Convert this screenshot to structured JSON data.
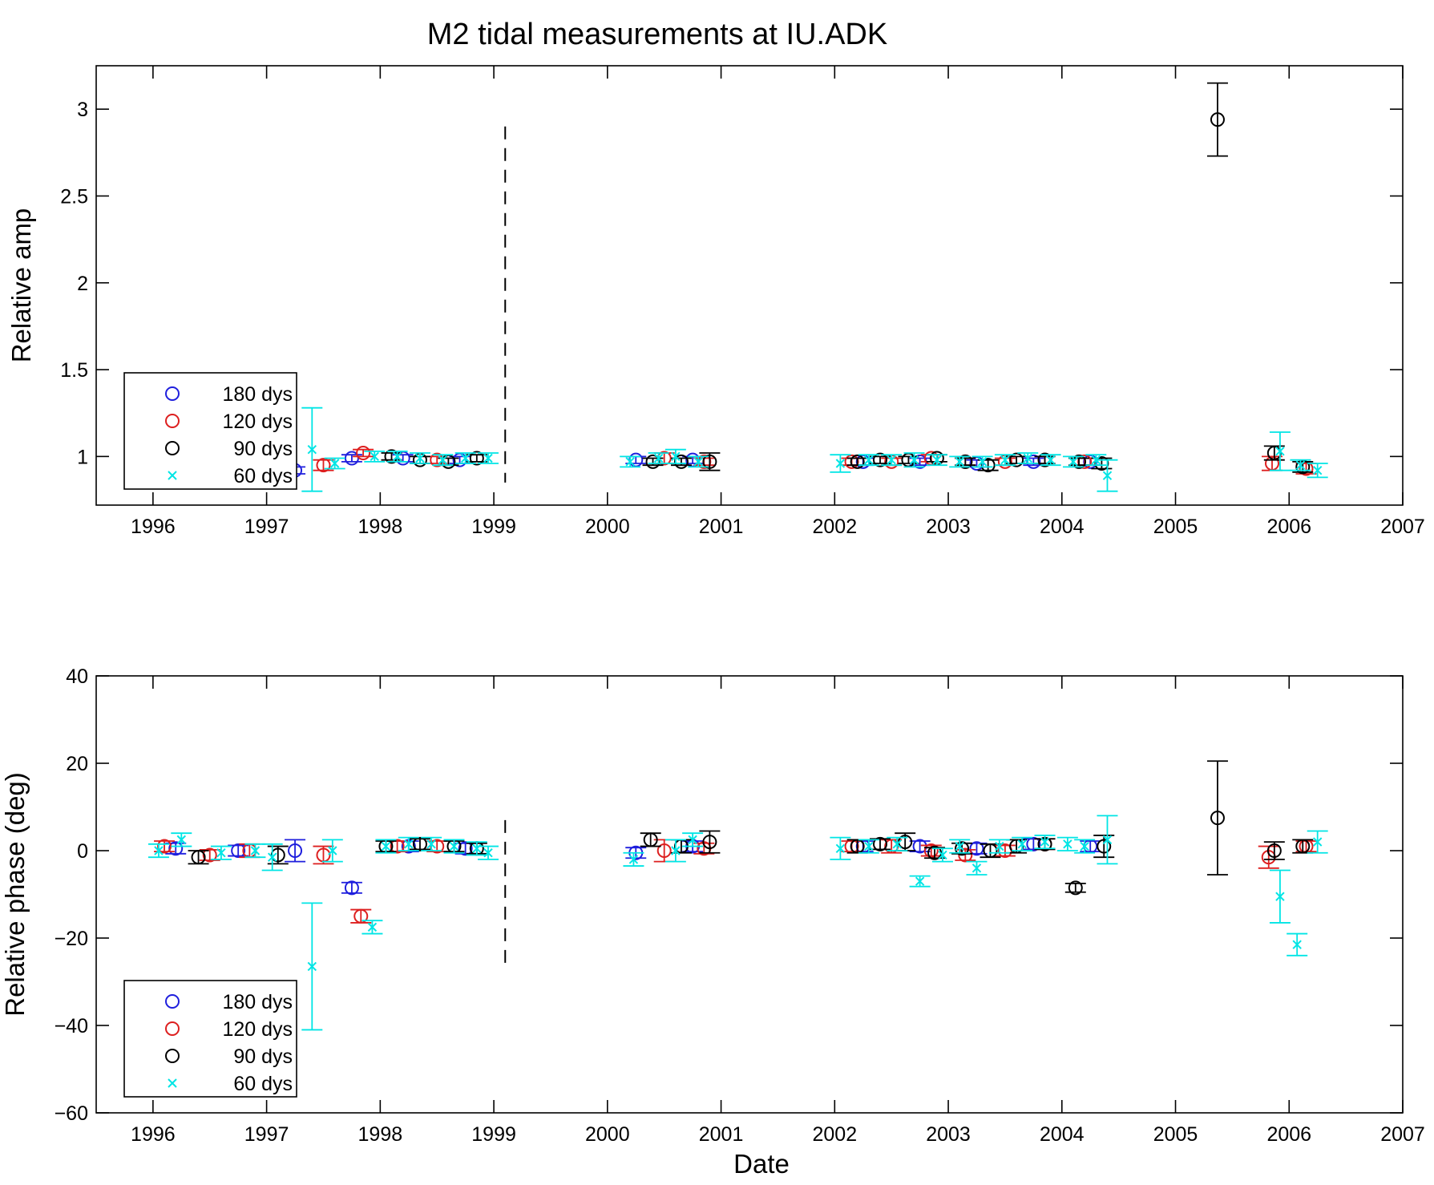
{
  "title": "M2 tidal measurements at IU.ADK",
  "chart_data": [
    {
      "type": "scatter",
      "ylabel": "Relative amp",
      "xlabel": "",
      "xlim": [
        1995.5,
        2007
      ],
      "ylim": [
        0.72,
        3.25
      ],
      "x_ticks": [
        1996,
        1997,
        1998,
        1999,
        2000,
        2001,
        2002,
        2003,
        2004,
        2005,
        2006,
        2007
      ],
      "y_ticks": [
        1,
        1.5,
        2,
        2.5,
        3
      ],
      "y_tick_labels": [
        "1",
        "1.5",
        "2",
        "2.5",
        "3"
      ],
      "error_bars": true,
      "grid": false,
      "legend_position": "bottom-left",
      "vline": {
        "x": 1999.1,
        "y0": 0.85,
        "y1": 2.9,
        "style": "dashed"
      },
      "series": [
        {
          "name": "180 dys",
          "color": "#1f1fdd",
          "marker": "circle",
          "points": [
            [
              1996.2,
              1.0,
              0.02
            ],
            [
              1997.25,
              0.92,
              0.02
            ],
            [
              1997.75,
              0.99,
              0.02
            ],
            [
              1998.2,
              0.99,
              0.02
            ],
            [
              1998.7,
              0.98,
              0.02
            ],
            [
              2000.25,
              0.98,
              0.02
            ],
            [
              2000.75,
              0.98,
              0.02
            ],
            [
              2002.25,
              0.97,
              0.02
            ],
            [
              2002.75,
              0.97,
              0.02
            ],
            [
              2003.25,
              0.96,
              0.02
            ],
            [
              2003.75,
              0.97,
              0.02
            ],
            [
              2004.25,
              0.97,
              0.02
            ]
          ]
        },
        {
          "name": "120 dys",
          "color": "#dd1f1f",
          "marker": "circle",
          "points": [
            [
              1996.1,
              1.0,
              0.02
            ],
            [
              1996.8,
              0.98,
              0.02
            ],
            [
              1997.5,
              0.95,
              0.03
            ],
            [
              1997.85,
              1.02,
              0.02
            ],
            [
              1998.5,
              0.98,
              0.02
            ],
            [
              2000.5,
              0.99,
              0.03
            ],
            [
              2000.85,
              0.97,
              0.02
            ],
            [
              2002.15,
              0.97,
              0.02
            ],
            [
              2002.5,
              0.97,
              0.02
            ],
            [
              2002.85,
              0.99,
              0.02
            ],
            [
              2003.15,
              0.97,
              0.02
            ],
            [
              2003.5,
              0.97,
              0.02
            ],
            [
              2003.85,
              0.98,
              0.02
            ],
            [
              2004.2,
              0.97,
              0.02
            ],
            [
              2005.85,
              0.96,
              0.04
            ],
            [
              2006.15,
              0.93,
              0.03
            ]
          ]
        },
        {
          "name": "90 dys",
          "color": "#000000",
          "marker": "circle",
          "points": [
            [
              1996.3,
              0.99,
              0.02
            ],
            [
              1997.1,
              0.99,
              0.02
            ],
            [
              1998.1,
              1.0,
              0.02
            ],
            [
              1998.35,
              0.98,
              0.02
            ],
            [
              1998.6,
              0.97,
              0.02
            ],
            [
              1998.85,
              0.99,
              0.02
            ],
            [
              2000.4,
              0.97,
              0.02
            ],
            [
              2000.65,
              0.97,
              0.02
            ],
            [
              2000.9,
              0.97,
              0.05
            ],
            [
              2002.2,
              0.97,
              0.02
            ],
            [
              2002.4,
              0.98,
              0.02
            ],
            [
              2002.65,
              0.98,
              0.02
            ],
            [
              2002.9,
              0.99,
              0.02
            ],
            [
              2003.15,
              0.97,
              0.02
            ],
            [
              2003.35,
              0.95,
              0.03
            ],
            [
              2003.6,
              0.98,
              0.02
            ],
            [
              2003.85,
              0.98,
              0.02
            ],
            [
              2004.15,
              0.97,
              0.02
            ],
            [
              2004.35,
              0.96,
              0.03
            ],
            [
              2005.37,
              2.94,
              0.21
            ],
            [
              2005.87,
              1.02,
              0.04
            ],
            [
              2006.12,
              0.94,
              0.03
            ]
          ]
        },
        {
          "name": "60 dys",
          "color": "#00e5e5",
          "marker": "x",
          "points": [
            [
              1996.1,
              1.0,
              0.03
            ],
            [
              1996.3,
              1.0,
              0.03
            ],
            [
              1996.5,
              0.99,
              0.03
            ],
            [
              1996.7,
              0.99,
              0.03
            ],
            [
              1996.9,
              0.99,
              0.03
            ],
            [
              1997.1,
              0.99,
              0.03
            ],
            [
              1997.4,
              1.04,
              0.24
            ],
            [
              1997.6,
              0.96,
              0.03
            ],
            [
              1997.95,
              1.0,
              0.03
            ],
            [
              1998.15,
              1.0,
              0.03
            ],
            [
              1998.35,
              0.99,
              0.03
            ],
            [
              1998.55,
              0.98,
              0.03
            ],
            [
              1998.75,
              0.99,
              0.03
            ],
            [
              1998.95,
              0.99,
              0.03
            ],
            [
              2000.2,
              0.97,
              0.03
            ],
            [
              2000.45,
              0.99,
              0.03
            ],
            [
              2000.6,
              1.0,
              0.04
            ],
            [
              2000.8,
              0.97,
              0.03
            ],
            [
              2002.05,
              0.96,
              0.05
            ],
            [
              2002.3,
              0.98,
              0.03
            ],
            [
              2002.5,
              0.98,
              0.03
            ],
            [
              2002.7,
              0.98,
              0.04
            ],
            [
              2002.9,
              0.98,
              0.03
            ],
            [
              2003.1,
              0.97,
              0.03
            ],
            [
              2003.3,
              0.97,
              0.03
            ],
            [
              2003.5,
              0.98,
              0.03
            ],
            [
              2003.7,
              0.99,
              0.03
            ],
            [
              2003.9,
              0.98,
              0.03
            ],
            [
              2004.1,
              0.97,
              0.03
            ],
            [
              2004.3,
              0.98,
              0.03
            ],
            [
              2004.4,
              0.89,
              0.09
            ],
            [
              2005.92,
              1.03,
              0.11
            ],
            [
              2006.1,
              0.95,
              0.03
            ],
            [
              2006.25,
              0.92,
              0.04
            ]
          ]
        }
      ]
    },
    {
      "type": "scatter",
      "ylabel": "Relative phase (deg)",
      "xlabel": "Date",
      "xlim": [
        1995.5,
        2007
      ],
      "ylim": [
        -60,
        40
      ],
      "x_ticks": [
        1996,
        1997,
        1998,
        1999,
        2000,
        2001,
        2002,
        2003,
        2004,
        2005,
        2006,
        2007
      ],
      "y_ticks": [
        -60,
        -40,
        -20,
        0,
        20,
        40
      ],
      "y_tick_labels": [
        "−60",
        "−40",
        "−20",
        "0",
        "20",
        "40"
      ],
      "error_bars": true,
      "grid": false,
      "legend_position": "bottom-left",
      "vline": {
        "x": 1999.1,
        "y0": -27,
        "y1": 7,
        "style": "dashed"
      },
      "series": [
        {
          "name": "180 dys",
          "color": "#1f1fdd",
          "marker": "circle",
          "points": [
            [
              1996.2,
              0.5,
              1.2
            ],
            [
              1996.75,
              0.0,
              1.2
            ],
            [
              1997.25,
              0.0,
              2.5
            ],
            [
              1997.75,
              -8.5,
              1.2
            ],
            [
              1998.25,
              1.0,
              1.2
            ],
            [
              1998.75,
              0.5,
              1.2
            ],
            [
              2000.25,
              -0.5,
              1.2
            ],
            [
              2000.75,
              1.0,
              1.2
            ],
            [
              2002.25,
              1.0,
              1.2
            ],
            [
              2002.75,
              1.0,
              1.2
            ],
            [
              2003.25,
              0.5,
              1.2
            ],
            [
              2003.75,
              1.5,
              1.2
            ],
            [
              2004.25,
              1.0,
              1.2
            ]
          ]
        },
        {
          "name": "120 dys",
          "color": "#dd1f1f",
          "marker": "circle",
          "points": [
            [
              1996.1,
              1.0,
              1.2
            ],
            [
              1996.5,
              -1.0,
              1.2
            ],
            [
              1996.85,
              0.0,
              1.5
            ],
            [
              1997.5,
              -1.0,
              2.0
            ],
            [
              1997.83,
              -15.0,
              1.5
            ],
            [
              1998.15,
              1.0,
              1.2
            ],
            [
              1998.5,
              1.0,
              1.2
            ],
            [
              2000.5,
              0.0,
              2.5
            ],
            [
              2000.85,
              0.5,
              1.2
            ],
            [
              2002.15,
              1.0,
              1.2
            ],
            [
              2002.5,
              1.0,
              1.5
            ],
            [
              2002.85,
              0.0,
              1.2
            ],
            [
              2003.15,
              -1.0,
              1.2
            ],
            [
              2003.5,
              0.0,
              1.2
            ],
            [
              2003.85,
              1.5,
              1.2
            ],
            [
              2005.82,
              -1.5,
              2.5
            ],
            [
              2006.15,
              1.0,
              1.2
            ]
          ]
        },
        {
          "name": "90 dys",
          "color": "#000000",
          "marker": "circle",
          "points": [
            [
              1996.4,
              -1.5,
              1.5
            ],
            [
              1997.1,
              -1.0,
              2.0
            ],
            [
              1998.05,
              1.0,
              1.2
            ],
            [
              1998.35,
              1.5,
              1.2
            ],
            [
              1998.65,
              1.0,
              1.2
            ],
            [
              1998.85,
              0.5,
              1.2
            ],
            [
              2000.38,
              2.5,
              1.5
            ],
            [
              2000.65,
              1.0,
              1.5
            ],
            [
              2000.9,
              2.0,
              2.5
            ],
            [
              2002.2,
              1.0,
              1.5
            ],
            [
              2002.4,
              1.5,
              1.2
            ],
            [
              2002.62,
              2.0,
              2.0
            ],
            [
              2002.88,
              -0.5,
              1.2
            ],
            [
              2003.12,
              0.5,
              1.2
            ],
            [
              2003.37,
              0.0,
              1.5
            ],
            [
              2003.6,
              1.0,
              1.5
            ],
            [
              2003.85,
              1.5,
              1.2
            ],
            [
              2004.12,
              -8.5,
              1.0
            ],
            [
              2004.37,
              1.0,
              2.5
            ],
            [
              2005.37,
              7.5,
              13.0
            ],
            [
              2005.87,
              0.0,
              2.0
            ],
            [
              2006.12,
              1.0,
              1.5
            ]
          ]
        },
        {
          "name": "60 dys",
          "color": "#00e5e5",
          "marker": "x",
          "points": [
            [
              1996.05,
              0.0,
              1.5
            ],
            [
              1996.25,
              2.5,
              1.5
            ],
            [
              1996.6,
              -0.5,
              1.5
            ],
            [
              1996.9,
              0.0,
              1.5
            ],
            [
              1997.05,
              -1.5,
              3.0
            ],
            [
              1997.4,
              -26.5,
              14.5
            ],
            [
              1997.58,
              0.0,
              2.5
            ],
            [
              1997.93,
              -17.5,
              1.5
            ],
            [
              1998.05,
              1.0,
              1.5
            ],
            [
              1998.25,
              1.5,
              1.5
            ],
            [
              1998.45,
              1.5,
              1.5
            ],
            [
              1998.65,
              1.0,
              1.5
            ],
            [
              1998.85,
              0.5,
              1.5
            ],
            [
              1998.95,
              -0.5,
              1.5
            ],
            [
              2000.23,
              -2.0,
              1.5
            ],
            [
              2000.6,
              0.0,
              2.5
            ],
            [
              2000.75,
              2.5,
              1.5
            ],
            [
              2002.05,
              0.5,
              2.5
            ],
            [
              2002.3,
              1.0,
              1.5
            ],
            [
              2002.55,
              1.5,
              1.5
            ],
            [
              2002.75,
              -7.0,
              1.2
            ],
            [
              2002.95,
              -1.0,
              1.5
            ],
            [
              2003.1,
              1.0,
              1.5
            ],
            [
              2003.25,
              -4.0,
              1.5
            ],
            [
              2003.45,
              1.0,
              1.5
            ],
            [
              2003.65,
              1.5,
              1.5
            ],
            [
              2003.85,
              2.0,
              1.5
            ],
            [
              2004.05,
              1.5,
              1.5
            ],
            [
              2004.2,
              1.0,
              1.5
            ],
            [
              2004.4,
              2.5,
              5.5
            ],
            [
              2005.92,
              -10.5,
              6.0
            ],
            [
              2006.07,
              -21.5,
              2.5
            ],
            [
              2006.25,
              2.0,
              2.5
            ]
          ]
        }
      ]
    }
  ]
}
